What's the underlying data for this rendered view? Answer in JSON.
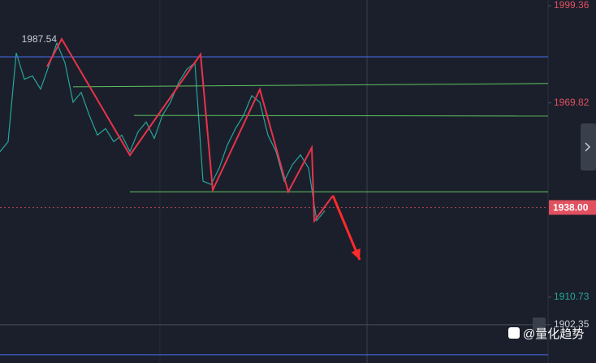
{
  "chart_data": {
    "type": "line",
    "annotation": "1987.54",
    "watermark": "@量化趋势",
    "ylim": [
      1890.7,
      2001.1
    ],
    "xlim": [
      0,
      135
    ],
    "yticks": [
      1999.36,
      1969.82,
      1910.73,
      1902.35
    ],
    "ytick_colors": [
      "#e0505f",
      "#e0505f",
      "#26a69a",
      "#c8ccd4"
    ],
    "price_label": {
      "value": 1938,
      "label": "1938.00"
    },
    "price_color": "#e0505f",
    "series": [
      {
        "color": "#26a69a",
        "width": 1.2,
        "x": [
          0,
          2,
          4,
          6,
          8,
          10,
          12,
          14,
          16,
          18,
          20,
          22,
          24,
          26,
          28,
          30,
          32,
          34,
          36,
          38,
          40,
          42,
          44,
          46,
          48,
          50,
          52,
          54,
          56,
          58,
          60,
          62,
          64,
          66,
          68,
          70,
          72,
          74,
          76,
          78,
          80
        ],
        "values": [
          1955,
          1958,
          1985,
          1977,
          1978,
          1974,
          1981,
          1988,
          1982,
          1970,
          1973,
          1966,
          1960,
          1962,
          1958,
          1960,
          1955,
          1961,
          1964,
          1959,
          1966,
          1970,
          1976,
          1980,
          1982,
          1946,
          1945,
          1950,
          1957,
          1962,
          1966,
          1972,
          1970,
          1960,
          1955,
          1946,
          1951,
          1954,
          1950,
          1934,
          1937
        ]
      },
      {
        "color": "#4a6cf0",
        "width": 1,
        "x": [
          0,
          135
        ],
        "values": [
          1983.8,
          1983.8
        ]
      },
      {
        "color": "#4a6cf0",
        "width": 1,
        "x": [
          0,
          135
        ],
        "values": [
          1893.2,
          1893.2
        ]
      },
      {
        "color": "#5fc25f",
        "width": 1,
        "x": [
          18,
          135
        ],
        "values": [
          1974.7,
          1975.7
        ]
      },
      {
        "color": "#5fc25f",
        "width": 1,
        "x": [
          33,
          135
        ],
        "values": [
          1966.0,
          1965.8
        ]
      },
      {
        "color": "#5fc25f",
        "width": 1,
        "x": [
          32,
          135
        ],
        "values": [
          1942.8,
          1942.8
        ]
      },
      {
        "color": "#e8334a",
        "width": 2,
        "x": [
          11.6,
          15.2,
          32,
          49.4,
          52.4,
          64,
          71,
          76.8,
          77.4,
          82
        ],
        "values": [
          1980.85,
          1989.25,
          1953.9,
          1984.56,
          1943.3,
          1973.9,
          1942.8,
          1956.2,
          1933.9,
          1941.6
        ]
      },
      {
        "color": "#ff2a2a",
        "width": 3,
        "arrow": true,
        "x": [
          82,
          88.6
        ],
        "values": [
          1941.6,
          1922.1
        ]
      }
    ]
  }
}
